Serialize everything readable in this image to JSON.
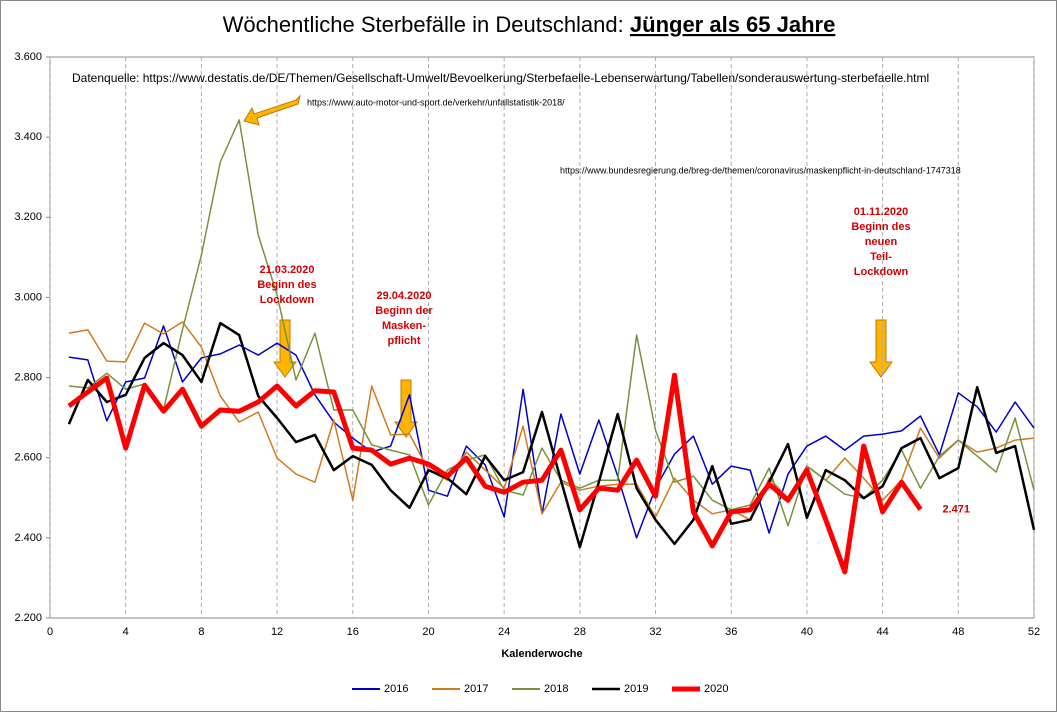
{
  "chart_data": {
    "type": "line",
    "title": "Wöchentliche Sterbefälle in Deutschland:",
    "title_emphasis": "Jünger als 65 Jahre",
    "x_label": "Kalenderwoche",
    "x": [
      1,
      2,
      3,
      4,
      5,
      6,
      7,
      8,
      9,
      10,
      11,
      12,
      13,
      14,
      15,
      16,
      17,
      18,
      19,
      20,
      21,
      22,
      23,
      24,
      25,
      26,
      27,
      28,
      29,
      30,
      31,
      32,
      33,
      34,
      35,
      36,
      37,
      38,
      39,
      40,
      41,
      42,
      43,
      44,
      45,
      46,
      47,
      48,
      49,
      50,
      51,
      52
    ],
    "xlim": [
      0,
      52
    ],
    "xticks": [
      0,
      4,
      8,
      12,
      16,
      20,
      24,
      28,
      32,
      36,
      40,
      44,
      48,
      52
    ],
    "ylim": [
      2200,
      3600
    ],
    "yticks": [
      {
        "value": 2200,
        "label": "2.200"
      },
      {
        "value": 2400,
        "label": "2.400"
      },
      {
        "value": 2600,
        "label": "2.600"
      },
      {
        "value": 2800,
        "label": "2.800"
      },
      {
        "value": 3000,
        "label": "3.000"
      },
      {
        "value": 3200,
        "label": "3.200"
      },
      {
        "value": 3400,
        "label": "3.400"
      },
      {
        "value": 3600,
        "label": "3.600"
      }
    ],
    "grid": "x",
    "legend": "bottom",
    "series": [
      {
        "name": "2016",
        "color": "#0000cc",
        "width": 1.5,
        "values": [
          2851,
          2844,
          2692,
          2789,
          2799,
          2929,
          2789,
          2849,
          2859,
          2881,
          2856,
          2886,
          2856,
          2757,
          2689,
          2649,
          2614,
          2629,
          2757,
          2519,
          2504,
          2629,
          2582,
          2452,
          2771,
          2460,
          2709,
          2559,
          2694,
          2554,
          2400,
          2524,
          2609,
          2654,
          2534,
          2579,
          2569,
          2412,
          2559,
          2629,
          2654,
          2619,
          2654,
          2659,
          2667,
          2704,
          2607,
          2762,
          2727,
          2664,
          2739,
          2674
        ]
      },
      {
        "name": "2017",
        "color": "#d07a1e",
        "width": 1.5,
        "values": [
          2911,
          2919,
          2841,
          2839,
          2936,
          2909,
          2939,
          2876,
          2754,
          2689,
          2714,
          2599,
          2559,
          2539,
          2694,
          2494,
          2779,
          2657,
          2659,
          2569,
          2544,
          2614,
          2569,
          2524,
          2679,
          2460,
          2539,
          2519,
          2529,
          2534,
          2534,
          2452,
          2549,
          2494,
          2460,
          2470,
          2445,
          2549,
          2499,
          2579,
          2544,
          2599,
          2549,
          2494,
          2544,
          2674,
          2599,
          2644,
          2614,
          2624,
          2644,
          2649
        ]
      },
      {
        "name": "2018",
        "color": "#76923c",
        "width": 1.5,
        "values": [
          2779,
          2774,
          2811,
          2771,
          2784,
          2720,
          2920,
          3106,
          3338,
          3443,
          3156,
          3006,
          2794,
          2911,
          2719,
          2719,
          2632,
          2619,
          2607,
          2482,
          2569,
          2594,
          2607,
          2519,
          2507,
          2624,
          2544,
          2524,
          2544,
          2544,
          2906,
          2669,
          2539,
          2554,
          2494,
          2470,
          2482,
          2574,
          2430,
          2579,
          2544,
          2509,
          2499,
          2544,
          2619,
          2524,
          2604,
          2644,
          2604,
          2564,
          2699,
          2519
        ]
      },
      {
        "name": "2019",
        "color": "#000000",
        "width": 2.5,
        "values": [
          2684,
          2794,
          2739,
          2757,
          2849,
          2886,
          2856,
          2789,
          2936,
          2906,
          2754,
          2699,
          2639,
          2657,
          2569,
          2604,
          2582,
          2519,
          2475,
          2569,
          2549,
          2509,
          2604,
          2544,
          2564,
          2714,
          2544,
          2377,
          2539,
          2709,
          2524,
          2445,
          2385,
          2445,
          2579,
          2435,
          2445,
          2539,
          2634,
          2450,
          2569,
          2544,
          2499,
          2529,
          2624,
          2649,
          2549,
          2574,
          2776,
          2612,
          2629,
          2420
        ]
      },
      {
        "name": "2020",
        "color": "#ff0000",
        "width": 5,
        "values": [
          2729,
          2764,
          2799,
          2624,
          2781,
          2716,
          2771,
          2679,
          2719,
          2716,
          2739,
          2779,
          2729,
          2767,
          2764,
          2624,
          2619,
          2584,
          2599,
          2584,
          2554,
          2599,
          2529,
          2514,
          2539,
          2544,
          2619,
          2470,
          2524,
          2519,
          2594,
          2504,
          2806,
          2465,
          2380,
          2465,
          2470,
          2534,
          2494,
          2569,
          2445,
          2315,
          2629,
          2465,
          2539,
          2471,
          null,
          null,
          null,
          null,
          null,
          null
        ],
        "value_labels": [
          null,
          null,
          null,
          null,
          null,
          null,
          null,
          null,
          null,
          null,
          null,
          null,
          null,
          null,
          null,
          null,
          null,
          null,
          null,
          null,
          null,
          null,
          null,
          null,
          null,
          null,
          null,
          null,
          null,
          null,
          null,
          null,
          null,
          null,
          null,
          null,
          null,
          null,
          null,
          null,
          null,
          null,
          null,
          null,
          null,
          "2.471",
          null,
          null,
          null,
          null,
          null,
          null
        ]
      }
    ],
    "annotations": [
      {
        "lines": [
          "Datenquelle: https://www.destatis.de/DE/Themen/Gesellschaft-Umwelt/Bevoelkerung/Sterbefaelle-Lebenserwartung/Tabellen/sonderauswertung-sterbefaelle.html"
        ]
      },
      {
        "lines": [
          "https://www.auto-motor-und-sport.de/verkehr/unfallstatistik-2018/"
        ]
      },
      {
        "lines": [
          "https://www.bundesregierung.de/breg-de/themen/coronavirus/maskenpflicht-in-deutschland-1747318"
        ]
      },
      {
        "lines": [
          "21.03.2020",
          "Beginn des",
          "Lockdown"
        ]
      },
      {
        "lines": [
          "29.04.2020",
          "Beginn der",
          "Masken-",
          "pflicht"
        ]
      },
      {
        "lines": [
          "01.11.2020",
          "Beginn des",
          "neuen",
          "Teil-",
          "Lockdown"
        ]
      }
    ]
  }
}
